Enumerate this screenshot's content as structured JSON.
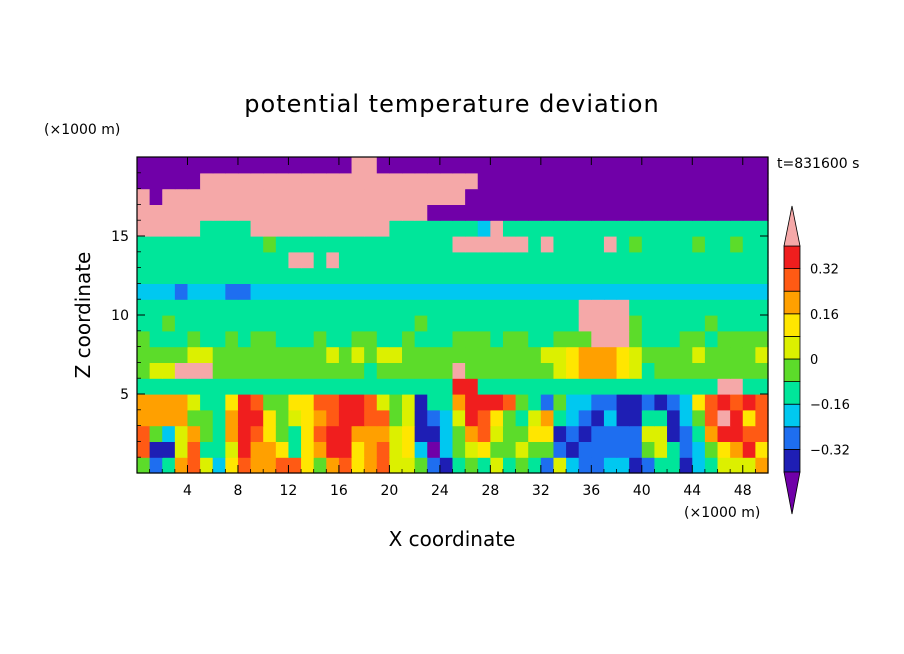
{
  "chart_data": {
    "type": "heatmap",
    "title": "potential temperature deviation",
    "xlabel": "X coordinate",
    "ylabel": "Z coordinate",
    "x_unit": "(×1000 m)",
    "y_unit": "(×1000 m)",
    "time_label": "t=831600 s",
    "xlim": [
      0,
      50
    ],
    "ylim": [
      0,
      20
    ],
    "x_ticks": [
      4,
      8,
      12,
      16,
      20,
      24,
      28,
      32,
      36,
      40,
      44,
      48
    ],
    "y_ticks": [
      5,
      10,
      15
    ],
    "colorbar": {
      "levels": [
        -0.4,
        -0.32,
        -0.24,
        -0.16,
        -0.08,
        0,
        0.08,
        0.16,
        0.24,
        0.32,
        0.4
      ],
      "tick_labels": [
        "0.32",
        "0.16",
        "0",
        "−0.16",
        "−0.32"
      ],
      "tick_values": [
        0.32,
        0.16,
        0,
        -0.16,
        -0.32
      ],
      "colors": [
        "#7000a8",
        "#1e1eb4",
        "#1e6ef0",
        "#00c8f0",
        "#00e69a",
        "#5cdc2a",
        "#dcf000",
        "#ffe600",
        "#ffa000",
        "#ff5a14",
        "#f01e1e",
        "#f5a8a8"
      ],
      "extend": "both"
    },
    "field_description_grid": {
      "nx": 50,
      "nz": 20,
      "values": [
        [
          -0.03,
          -0.26,
          -0.11,
          0.18,
          0.27,
          0.05,
          -0.21,
          0.11,
          0.3,
          0.19,
          0.2,
          0.26,
          0.24,
          0.11,
          -0.08,
          0.17,
          0.29,
          0.14,
          0.16,
          0.26,
          0.03,
          0.01,
          -0.04,
          -0.31,
          -0.36,
          -0.11,
          -0.07,
          -0.14,
          0.0,
          -0.13,
          -0.02,
          -0.09,
          -0.27,
          0.02,
          -0.22,
          -0.32,
          -0.27,
          -0.18,
          -0.23,
          -0.39,
          -0.27,
          -0.11,
          -0.13,
          -0.34,
          -0.21,
          -0.15,
          0.05,
          0.05,
          0.07,
          0.18
        ],
        [
          0.26,
          -0.33,
          -0.37,
          0.05,
          0.27,
          -0.14,
          -0.15,
          0.06,
          0.34,
          0.21,
          0.22,
          0.1,
          -0.12,
          0.13,
          0.2,
          0.32,
          0.34,
          0.09,
          0.18,
          0.24,
          0.07,
          0.1,
          -0.23,
          -0.43,
          -0.24,
          -0.05,
          0.07,
          0.09,
          -0.03,
          -0.06,
          0.07,
          -0.07,
          -0.04,
          -0.25,
          -0.39,
          -0.32,
          -0.27,
          -0.25,
          -0.27,
          -0.32,
          -0.05,
          0.06,
          -0.13,
          -0.32,
          -0.17,
          -0.03,
          0.11,
          0.2,
          0.34,
          0.11
        ],
        [
          0.3,
          -0.04,
          -0.2,
          0.05,
          0.22,
          -0.07,
          -0.12,
          0.17,
          0.34,
          0.25,
          0.14,
          -0.06,
          -0.11,
          0.15,
          0.26,
          0.34,
          0.36,
          0.16,
          0.22,
          0.23,
          0.05,
          0.15,
          -0.36,
          -0.33,
          -0.2,
          -0.04,
          0.22,
          0.25,
          0.06,
          -0.05,
          -0.06,
          0.11,
          0.13,
          -0.38,
          -0.27,
          -0.35,
          -0.32,
          -0.25,
          -0.32,
          -0.3,
          0.03,
          0.0,
          -0.35,
          -0.3,
          -0.13,
          0.16,
          0.34,
          0.38,
          0.28,
          0.29
        ],
        [
          0.22,
          0.17,
          0.16,
          0.18,
          -0.03,
          -0.08,
          -0.12,
          0.23,
          0.38,
          0.35,
          0.08,
          -0.03,
          0.01,
          0.13,
          0.21,
          0.25,
          0.34,
          0.37,
          0.29,
          0.27,
          -0.03,
          0.06,
          -0.36,
          -0.26,
          -0.18,
          0.05,
          0.37,
          0.28,
          0.09,
          -0.01,
          -0.12,
          0.07,
          0.21,
          -0.14,
          -0.22,
          -0.26,
          -0.33,
          -0.23,
          -0.33,
          -0.4,
          -0.09,
          -0.14,
          -0.33,
          -0.19,
          -0.06,
          0.24,
          0.4,
          0.32,
          0.11,
          0.26
        ],
        [
          0.22,
          0.17,
          0.16,
          0.18,
          0.05,
          -0.16,
          -0.13,
          0.13,
          0.33,
          0.28,
          -0.07,
          -0.07,
          0.1,
          0.11,
          0.24,
          0.3,
          0.37,
          0.35,
          0.25,
          0.01,
          -0.08,
          0.06,
          -0.35,
          -0.14,
          -0.14,
          0.2,
          0.39,
          0.38,
          0.32,
          0.29,
          -0.08,
          -0.16,
          -0.31,
          -0.08,
          -0.19,
          -0.18,
          -0.3,
          -0.25,
          -0.33,
          -0.33,
          -0.3,
          -0.34,
          -0.27,
          -0.18,
          0.1,
          0.3,
          0.33,
          0.26,
          0.34,
          0.25
        ],
        [
          -0.12,
          -0.13,
          -0.16,
          -0.13,
          -0.15,
          -0.15,
          -0.14,
          -0.14,
          -0.13,
          -0.13,
          -0.16,
          -0.16,
          -0.14,
          -0.15,
          -0.14,
          -0.13,
          -0.16,
          -0.12,
          -0.16,
          -0.16,
          -0.13,
          -0.12,
          -0.09,
          -0.13,
          -0.16,
          0.39,
          0.38,
          -0.15,
          -0.12,
          -0.14,
          -0.14,
          -0.16,
          -0.13,
          -0.16,
          -0.13,
          -0.15,
          -0.13,
          -0.14,
          -0.13,
          -0.14,
          -0.14,
          -0.14,
          -0.12,
          -0.13,
          -0.13,
          -0.13,
          0.41,
          0.41,
          -0.15,
          -0.13
        ],
        [
          -0.01,
          0.02,
          0.05,
          0.4,
          0.42,
          0.41,
          -0.03,
          -0.03,
          -0.05,
          -0.05,
          -0.05,
          -0.07,
          -0.08,
          -0.05,
          -0.03,
          -0.03,
          -0.02,
          -0.05,
          -0.09,
          -0.03,
          -0.05,
          -0.07,
          -0.06,
          -0.02,
          -0.02,
          0.41,
          -0.06,
          -0.04,
          -0.04,
          -0.02,
          -0.02,
          -0.05,
          -0.01,
          0.06,
          0.13,
          0.21,
          0.19,
          0.19,
          0.15,
          0.07,
          -0.09,
          -0.04,
          -0.03,
          -0.03,
          -0.06,
          -0.05,
          -0.06,
          -0.05,
          -0.06,
          -0.02
        ],
        [
          -0.05,
          -0.04,
          -0.05,
          -0.05,
          0.0,
          0.03,
          -0.06,
          -0.04,
          -0.02,
          -0.03,
          -0.01,
          -0.05,
          -0.01,
          -0.05,
          -0.02,
          0.02,
          -0.04,
          0.03,
          -0.01,
          0.01,
          0.0,
          -0.01,
          -0.04,
          -0.01,
          -0.02,
          -0.05,
          -0.02,
          -0.05,
          -0.05,
          -0.04,
          -0.06,
          -0.04,
          0.01,
          0.04,
          0.12,
          0.21,
          0.21,
          0.19,
          0.12,
          0.06,
          -0.01,
          -0.02,
          -0.04,
          -0.02,
          -0.0,
          -0.02,
          -0.04,
          -0.02,
          -0.05,
          0.02
        ],
        [
          -0.07,
          -0.09,
          -0.1,
          -0.09,
          -0.06,
          -0.09,
          -0.11,
          -0.07,
          -0.09,
          -0.05,
          -0.08,
          -0.11,
          -0.09,
          -0.11,
          -0.05,
          -0.1,
          -0.1,
          -0.06,
          -0.07,
          -0.1,
          -0.11,
          -0.08,
          -0.11,
          -0.1,
          -0.1,
          -0.06,
          -0.08,
          -0.06,
          -0.09,
          -0.07,
          -0.08,
          -0.1,
          -0.09,
          -0.07,
          -0.08,
          -0.05,
          0.42,
          0.42,
          0.42,
          -0.07,
          -0.11,
          -0.09,
          -0.09,
          -0.06,
          -0.07,
          -0.1,
          -0.06,
          -0.07,
          -0.07,
          -0.06
        ],
        [
          -0.12,
          -0.09,
          -0.08,
          -0.09,
          -0.12,
          -0.1,
          -0.13,
          -0.11,
          -0.11,
          -0.09,
          -0.13,
          -0.11,
          -0.09,
          -0.1,
          -0.12,
          -0.1,
          -0.13,
          -0.13,
          -0.12,
          -0.11,
          -0.13,
          -0.11,
          -0.08,
          -0.12,
          -0.13,
          -0.13,
          -0.11,
          -0.09,
          -0.09,
          -0.09,
          -0.13,
          -0.12,
          -0.12,
          -0.1,
          -0.09,
          0.42,
          0.42,
          0.42,
          0.42,
          -0.08,
          -0.12,
          -0.1,
          -0.09,
          -0.09,
          -0.13,
          -0.08,
          -0.12,
          -0.11,
          -0.11,
          -0.12
        ],
        [
          -0.12,
          -0.11,
          -0.14,
          -0.13,
          -0.12,
          -0.13,
          -0.14,
          -0.13,
          -0.13,
          -0.14,
          -0.13,
          -0.13,
          -0.14,
          -0.13,
          -0.13,
          -0.12,
          -0.12,
          -0.14,
          -0.13,
          -0.14,
          -0.13,
          -0.12,
          -0.13,
          -0.14,
          -0.14,
          -0.14,
          -0.14,
          -0.12,
          -0.12,
          -0.11,
          -0.12,
          -0.13,
          -0.13,
          -0.12,
          -0.13,
          0.42,
          0.42,
          0.42,
          0.42,
          -0.14,
          -0.14,
          -0.14,
          -0.13,
          -0.14,
          -0.12,
          -0.13,
          -0.11,
          -0.11,
          -0.13,
          -0.14
        ],
        [
          -0.23,
          -0.23,
          -0.22,
          -0.25,
          -0.22,
          -0.24,
          -0.24,
          -0.25,
          -0.25,
          -0.24,
          -0.23,
          -0.24,
          -0.23,
          -0.23,
          -0.24,
          -0.24,
          -0.24,
          -0.23,
          -0.24,
          -0.23,
          -0.23,
          -0.23,
          -0.23,
          -0.24,
          -0.23,
          -0.24,
          -0.23,
          -0.23,
          -0.24,
          -0.23,
          -0.24,
          -0.23,
          -0.23,
          -0.24,
          -0.24,
          -0.23,
          -0.24,
          -0.24,
          -0.24,
          -0.23,
          -0.24,
          -0.23,
          -0.24,
          -0.24,
          -0.24,
          -0.22,
          -0.24,
          -0.23,
          -0.24,
          -0.23
        ],
        [
          -0.12,
          -0.14,
          -0.13,
          -0.15,
          -0.14,
          -0.14,
          -0.14,
          -0.13,
          -0.14,
          -0.13,
          -0.13,
          -0.13,
          -0.14,
          -0.13,
          -0.14,
          -0.15,
          -0.14,
          -0.14,
          -0.14,
          -0.14,
          -0.13,
          -0.12,
          -0.14,
          -0.13,
          -0.14,
          -0.13,
          -0.15,
          -0.12,
          -0.13,
          -0.13,
          -0.13,
          -0.13,
          -0.14,
          -0.13,
          -0.13,
          -0.15,
          -0.14,
          -0.14,
          -0.14,
          -0.12,
          -0.13,
          -0.15,
          -0.13,
          -0.13,
          -0.14,
          -0.15,
          -0.12,
          -0.13,
          -0.15,
          -0.14
        ],
        [
          -0.14,
          -0.12,
          -0.13,
          -0.13,
          -0.13,
          -0.14,
          -0.13,
          -0.13,
          -0.11,
          -0.13,
          -0.14,
          -0.13,
          0.41,
          0.41,
          -0.14,
          0.41,
          -0.13,
          -0.13,
          -0.13,
          -0.14,
          -0.13,
          -0.13,
          -0.13,
          -0.12,
          -0.12,
          -0.14,
          -0.13,
          -0.11,
          -0.14,
          -0.14,
          -0.13,
          -0.14,
          -0.14,
          -0.14,
          -0.13,
          -0.14,
          -0.12,
          -0.13,
          -0.14,
          -0.13,
          -0.12,
          -0.13,
          -0.12,
          -0.13,
          -0.14,
          -0.13,
          -0.12,
          -0.12,
          -0.14,
          -0.13
        ],
        [
          -0.1,
          -0.09,
          -0.09,
          -0.11,
          -0.1,
          -0.09,
          -0.11,
          -0.09,
          -0.1,
          -0.1,
          -0.08,
          -0.09,
          -0.1,
          -0.1,
          -0.11,
          -0.09,
          -0.09,
          -0.1,
          -0.12,
          -0.12,
          -0.12,
          -0.1,
          -0.11,
          -0.1,
          -0.11,
          0.42,
          0.42,
          0.42,
          0.42,
          0.42,
          0.42,
          -0.09,
          0.42,
          -0.1,
          -0.1,
          -0.11,
          -0.09,
          0.42,
          -0.12,
          -0.08,
          -0.1,
          -0.12,
          -0.11,
          -0.09,
          -0.08,
          -0.11,
          -0.09,
          -0.08,
          -0.1,
          -0.12
        ],
        [
          0.42,
          0.42,
          0.42,
          0.42,
          0.42,
          -0.16,
          -0.13,
          -0.15,
          -0.11,
          0.42,
          0.42,
          0.42,
          0.42,
          0.42,
          0.42,
          0.42,
          0.42,
          0.42,
          0.42,
          0.42,
          -0.11,
          -0.15,
          -0.15,
          -0.15,
          -0.13,
          -0.13,
          -0.16,
          -0.17,
          0.42,
          -0.15,
          -0.14,
          -0.14,
          -0.15,
          -0.12,
          -0.16,
          -0.13,
          -0.13,
          -0.14,
          -0.11,
          -0.14,
          -0.16,
          -0.13,
          -0.15,
          -0.15,
          -0.14,
          -0.15,
          -0.12,
          -0.16,
          -0.14,
          -0.15
        ],
        [
          0.42,
          0.42,
          0.42,
          0.42,
          0.42,
          0.42,
          0.42,
          0.42,
          0.42,
          0.42,
          0.42,
          0.42,
          0.42,
          0.42,
          0.42,
          0.42,
          0.42,
          0.42,
          0.42,
          0.42,
          0.42,
          0.42,
          0.42,
          -0.45,
          -0.45,
          -0.45,
          -0.45,
          -0.45,
          -0.45,
          -0.45,
          -0.45,
          -0.45,
          -0.45,
          -0.45,
          -0.45,
          -0.45,
          -0.45,
          -0.45,
          -0.45,
          -0.45,
          -0.45,
          -0.45,
          -0.45,
          -0.45,
          -0.45,
          -0.45,
          -0.45,
          -0.45,
          -0.45,
          -0.45
        ],
        [
          0.42,
          -0.45,
          0.42,
          0.42,
          0.42,
          0.42,
          0.42,
          0.42,
          0.42,
          0.42,
          0.42,
          0.42,
          0.42,
          0.42,
          0.42,
          0.42,
          0.42,
          0.42,
          0.42,
          0.42,
          0.42,
          0.42,
          0.42,
          0.42,
          0.42,
          0.42,
          -0.45,
          -0.45,
          -0.45,
          -0.45,
          -0.45,
          -0.45,
          -0.45,
          -0.45,
          -0.45,
          -0.45,
          -0.45,
          -0.45,
          -0.45,
          -0.45,
          -0.45,
          -0.45,
          -0.45,
          -0.45,
          -0.45,
          -0.45,
          -0.45,
          -0.45,
          -0.45,
          -0.45
        ],
        [
          -0.45,
          -0.45,
          -0.45,
          -0.45,
          -0.45,
          0.42,
          0.42,
          0.42,
          0.42,
          0.42,
          0.42,
          0.42,
          0.42,
          0.42,
          0.42,
          0.42,
          0.42,
          0.42,
          0.42,
          0.42,
          0.42,
          0.42,
          0.42,
          0.42,
          0.42,
          0.42,
          0.42,
          -0.45,
          -0.45,
          -0.45,
          -0.45,
          -0.45,
          -0.45,
          -0.45,
          -0.45,
          -0.45,
          -0.45,
          -0.45,
          -0.45,
          -0.45,
          -0.45,
          -0.45,
          -0.45,
          -0.45,
          -0.45,
          -0.45,
          -0.45,
          -0.45,
          -0.45,
          -0.45
        ],
        [
          -0.45,
          -0.45,
          -0.45,
          -0.45,
          -0.45,
          -0.45,
          -0.45,
          -0.45,
          -0.45,
          -0.45,
          -0.45,
          -0.45,
          -0.45,
          -0.45,
          -0.45,
          -0.45,
          -0.45,
          0.42,
          0.42,
          -0.45,
          -0.45,
          -0.45,
          -0.45,
          -0.45,
          -0.45,
          -0.45,
          -0.45,
          -0.45,
          -0.45,
          -0.45,
          -0.45,
          -0.45,
          -0.45,
          -0.45,
          -0.45,
          -0.45,
          -0.45,
          -0.45,
          -0.45,
          -0.45,
          -0.45,
          -0.45,
          -0.45,
          -0.45,
          -0.45,
          -0.45,
          -0.45,
          -0.45,
          -0.45,
          -0.45
        ]
      ]
    }
  }
}
